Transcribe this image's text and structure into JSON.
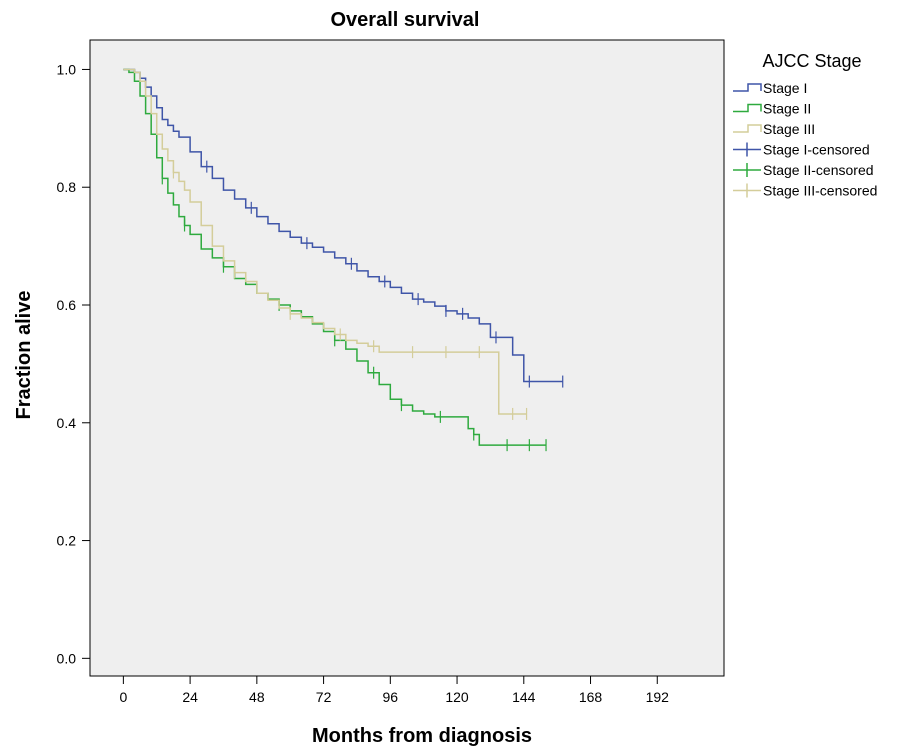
{
  "chart_data": {
    "type": "line",
    "title": "Overall survival",
    "xlabel": "Months from diagnosis",
    "ylabel": "Fraction alive",
    "xlim": [
      -12,
      216
    ],
    "ylim": [
      -0.03,
      1.05
    ],
    "x_ticks": [
      0,
      24,
      48,
      72,
      96,
      120,
      144,
      168,
      192
    ],
    "y_ticks": [
      0.0,
      0.2,
      0.4,
      0.6,
      0.8,
      1.0
    ],
    "y_tick_labels": [
      "0.0",
      "0.2",
      "0.4",
      "0.6",
      "0.8",
      "1.0"
    ],
    "background": "#efefef",
    "legend": {
      "title": "AJCC Stage",
      "position": "right"
    },
    "legend_entries": [
      "Stage I",
      "Stage II",
      "Stage III",
      "Stage I-censored",
      "Stage II-censored",
      "Stage III-censored"
    ],
    "series": [
      {
        "name": "Stage I",
        "color": "#3f55a8",
        "x": [
          0,
          2,
          4,
          6,
          8,
          10,
          12,
          14,
          16,
          18,
          20,
          24,
          28,
          32,
          36,
          40,
          44,
          48,
          52,
          56,
          60,
          64,
          68,
          72,
          76,
          80,
          84,
          88,
          92,
          96,
          100,
          104,
          108,
          112,
          116,
          120,
          124,
          128,
          132,
          136,
          140,
          144,
          150,
          158
        ],
        "y": [
          1.0,
          1.0,
          0.995,
          0.985,
          0.97,
          0.955,
          0.935,
          0.915,
          0.905,
          0.895,
          0.885,
          0.86,
          0.835,
          0.815,
          0.795,
          0.78,
          0.765,
          0.75,
          0.738,
          0.725,
          0.715,
          0.705,
          0.698,
          0.69,
          0.68,
          0.67,
          0.658,
          0.648,
          0.64,
          0.63,
          0.62,
          0.61,
          0.605,
          0.598,
          0.59,
          0.585,
          0.578,
          0.568,
          0.545,
          0.545,
          0.515,
          0.47,
          0.47,
          0.47
        ],
        "censored_x": [
          30,
          46,
          66,
          82,
          94,
          106,
          116,
          122,
          134,
          146,
          158
        ]
      },
      {
        "name": "Stage II",
        "color": "#2eaa3e",
        "x": [
          0,
          2,
          4,
          6,
          8,
          10,
          12,
          14,
          16,
          18,
          20,
          22,
          24,
          28,
          32,
          36,
          40,
          44,
          48,
          52,
          56,
          60,
          64,
          68,
          72,
          76,
          80,
          84,
          88,
          92,
          96,
          100,
          104,
          108,
          112,
          116,
          120,
          124,
          126,
          128,
          134,
          142,
          152
        ],
        "y": [
          1.0,
          0.995,
          0.98,
          0.955,
          0.925,
          0.89,
          0.85,
          0.815,
          0.79,
          0.77,
          0.75,
          0.735,
          0.72,
          0.695,
          0.68,
          0.665,
          0.645,
          0.635,
          0.62,
          0.61,
          0.6,
          0.59,
          0.58,
          0.568,
          0.555,
          0.54,
          0.525,
          0.505,
          0.485,
          0.465,
          0.44,
          0.43,
          0.42,
          0.415,
          0.41,
          0.41,
          0.41,
          0.39,
          0.38,
          0.362,
          0.362,
          0.362,
          0.362
        ],
        "censored_x": [
          14,
          22,
          36,
          56,
          76,
          90,
          100,
          114,
          126,
          138,
          146,
          152
        ]
      },
      {
        "name": "Stage III",
        "color": "#d4cd9a",
        "x": [
          0,
          2,
          4,
          6,
          8,
          10,
          12,
          14,
          16,
          18,
          20,
          22,
          24,
          28,
          32,
          36,
          40,
          44,
          48,
          52,
          56,
          60,
          64,
          68,
          72,
          76,
          80,
          84,
          88,
          92,
          96,
          100,
          104,
          108,
          112,
          120,
          130,
          133,
          135,
          145
        ],
        "y": [
          1.0,
          1.0,
          0.995,
          0.98,
          0.955,
          0.925,
          0.89,
          0.865,
          0.845,
          0.825,
          0.81,
          0.795,
          0.775,
          0.735,
          0.7,
          0.675,
          0.655,
          0.64,
          0.62,
          0.608,
          0.595,
          0.585,
          0.578,
          0.57,
          0.56,
          0.55,
          0.54,
          0.535,
          0.53,
          0.52,
          0.52,
          0.52,
          0.52,
          0.52,
          0.52,
          0.52,
          0.52,
          0.52,
          0.415,
          0.415
        ],
        "censored_x": [
          18,
          40,
          60,
          78,
          90,
          104,
          116,
          128,
          140,
          145
        ]
      }
    ]
  }
}
